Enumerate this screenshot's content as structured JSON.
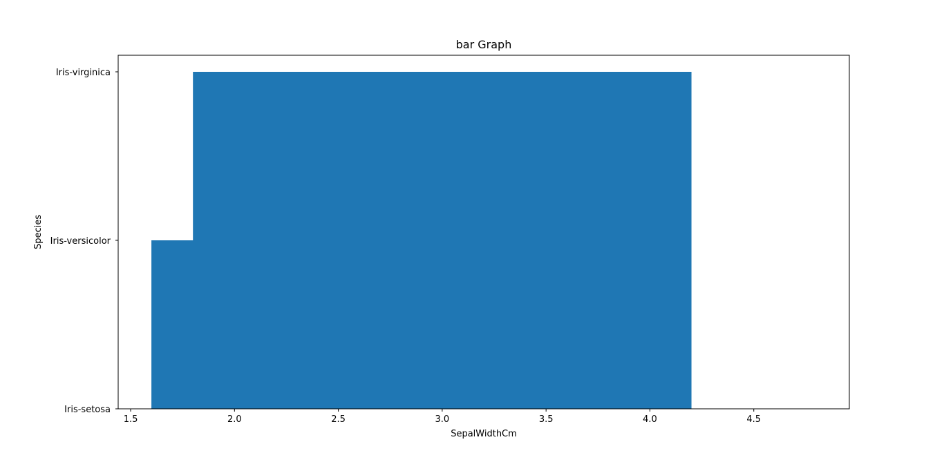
{
  "chart_data": {
    "type": "bar",
    "orientation": "horizontal",
    "title": "bar Graph",
    "xlabel": "SepalWidthCm",
    "ylabel": "Species",
    "categories": [
      "Iris-setosa",
      "Iris-versicolor",
      "Iris-virginica"
    ],
    "xlim": [
      1.44,
      4.96
    ],
    "x_ticks": [
      "1.5",
      "2.0",
      "2.5",
      "3.0",
      "3.5",
      "4.0",
      "4.5"
    ],
    "bars": [
      {
        "x_start": 1.6,
        "x_end": 4.2,
        "y_from": "Iris-setosa",
        "y_to": "Iris-versicolor"
      },
      {
        "x_start": 1.8,
        "x_end": 4.2,
        "y_from": "Iris-versicolor",
        "y_to": "Iris-virginica"
      }
    ],
    "grid": false,
    "legend": "none",
    "colors": {
      "bar": "#1f77b4",
      "axes": "#000000"
    }
  }
}
